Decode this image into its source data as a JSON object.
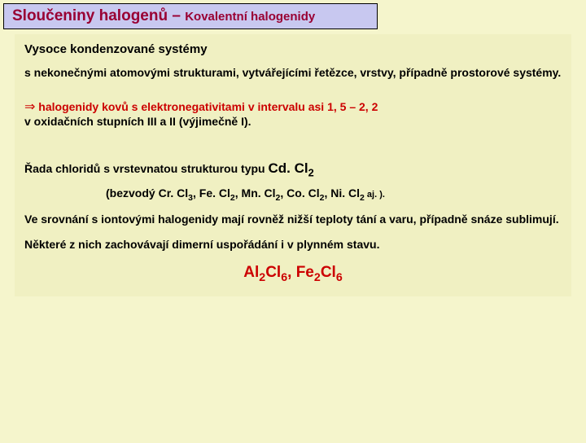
{
  "header": {
    "main": "Sloučeniny halogenů – ",
    "sub": "Kovalentní halogenidy"
  },
  "content": {
    "title": "Vysoce kondenzované systémy",
    "p1": "s nekonečnými atomovými strukturami, vytvářejícími řetězce, vrstvy, případně prostorové systémy.",
    "arrow": "⇒",
    "p2_red": " halogenidy kovů s elektronegativitami v intervalu asi 1, 5 – 2, 2",
    "p2_black": "v oxidačních stupních III a II (výjimečně I).",
    "p3_a": "Řada chloridů s vrstevnatou strukturou typu ",
    "p3_b": "Cd. Cl",
    "p3_sub": "2",
    "p4_open": "(bezvodý ",
    "ex1": "Cr. Cl",
    "ex1_sub": "3",
    "sep": ", ",
    "ex2": "Fe. Cl",
    "ex2_sub": "2",
    "ex3": "Mn. Cl",
    "ex3_sub": "2",
    "ex4": "Co. Cl",
    "ex4_sub": "2",
    "ex5": "Ni. Cl",
    "ex5_sub": "2",
    "p4_aj": " aj. ",
    "p4_close": ").",
    "p5": "Ve srovnání s iontovými halogenidy mají rovněž nižší teploty tání a varu, případně snáze sublimují.",
    "p6": "Některé z nich zachovávají dimerní uspořádání i v plynném stavu.",
    "f1": "Al",
    "f1_s1": "2",
    "f1_b": "Cl",
    "f1_s2": "6",
    "fsep": ", ",
    "f2": "Fe",
    "f2_s1": "2",
    "f2_b": "Cl",
    "f2_s2": "6"
  }
}
